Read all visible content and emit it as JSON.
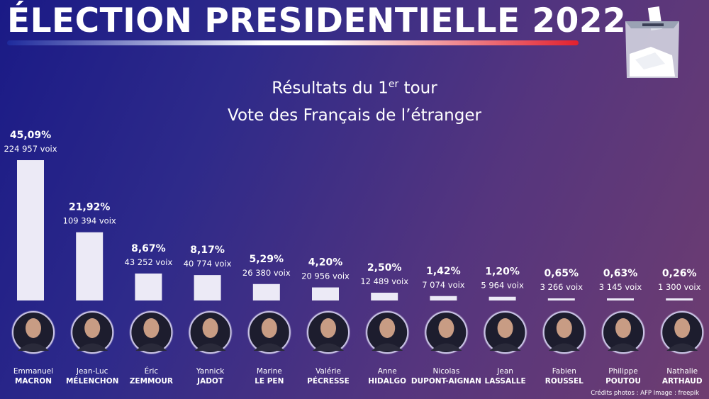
{
  "header": {
    "title": "ÉLECTION PRESIDENTIELLE 2022",
    "subtitle_line1_before": "Résultats du 1",
    "subtitle_line1_sup": "er",
    "subtitle_line1_after": " tour",
    "subtitle_line2": "Vote des Français de l’étranger",
    "ballot_icon": "ballot-box-icon"
  },
  "colors": {
    "bar": "#eceaf6",
    "title_bar_left": "#1e2a9c",
    "title_bar_right": "#e2202e"
  },
  "chart_data": {
    "type": "bar",
    "title": "Résultats du 1er tour — Vote des Français de l’étranger",
    "xlabel": "",
    "ylabel": "",
    "ylim": [
      0,
      45.09
    ],
    "categories": [
      "Emmanuel MACRON",
      "Jean-Luc MÉLENCHON",
      "Éric ZEMMOUR",
      "Yannick JADOT",
      "Marine LE PEN",
      "Valérie PÉCRESSE",
      "Anne HIDALGO",
      "Nicolas DUPONT-AIGNAN",
      "Jean LASSALLE",
      "Fabien ROUSSEL",
      "Philippe POUTOU",
      "Nathalie ARTHAUD"
    ],
    "values": [
      45.09,
      21.92,
      8.67,
      8.17,
      5.29,
      4.2,
      2.5,
      1.42,
      1.2,
      0.65,
      0.63,
      0.26
    ],
    "candidates": [
      {
        "first": "Emmanuel",
        "last": "MACRON",
        "pct_label": "45,09%",
        "votes_label": "224 957 voix",
        "value": 45.09
      },
      {
        "first": "Jean-Luc",
        "last": "MÉLENCHON",
        "pct_label": "21,92%",
        "votes_label": "109 394 voix",
        "value": 21.92
      },
      {
        "first": "Éric",
        "last": "ZEMMOUR",
        "pct_label": "8,67%",
        "votes_label": "43 252 voix",
        "value": 8.67
      },
      {
        "first": "Yannick",
        "last": "JADOT",
        "pct_label": "8,17%",
        "votes_label": "40 774 voix",
        "value": 8.17
      },
      {
        "first": "Marine",
        "last": "LE PEN",
        "pct_label": "5,29%",
        "votes_label": "26 380 voix",
        "value": 5.29
      },
      {
        "first": "Valérie",
        "last": "PÉCRESSE",
        "pct_label": "4,20%",
        "votes_label": "20 956 voix",
        "value": 4.2
      },
      {
        "first": "Anne",
        "last": "HIDALGO",
        "pct_label": "2,50%",
        "votes_label": "12 489 voix",
        "value": 2.5
      },
      {
        "first": "Nicolas",
        "last": "DUPONT-AIGNAN",
        "pct_label": "1,42%",
        "votes_label": "7 074 voix",
        "value": 1.42
      },
      {
        "first": "Jean",
        "last": "LASSALLE",
        "pct_label": "1,20%",
        "votes_label": "5 964 voix",
        "value": 1.2
      },
      {
        "first": "Fabien",
        "last": "ROUSSEL",
        "pct_label": "0,65%",
        "votes_label": "3 266 voix",
        "value": 0.65
      },
      {
        "first": "Philippe",
        "last": "POUTOU",
        "pct_label": "0,63%",
        "votes_label": "3 145 voix",
        "value": 0.63
      },
      {
        "first": "Nathalie",
        "last": "ARTHAUD",
        "pct_label": "0,26%",
        "votes_label": "1 300 voix",
        "value": 0.26
      }
    ]
  },
  "footer": {
    "credits": "Crédits photos : AFP     Image :  freepik"
  }
}
